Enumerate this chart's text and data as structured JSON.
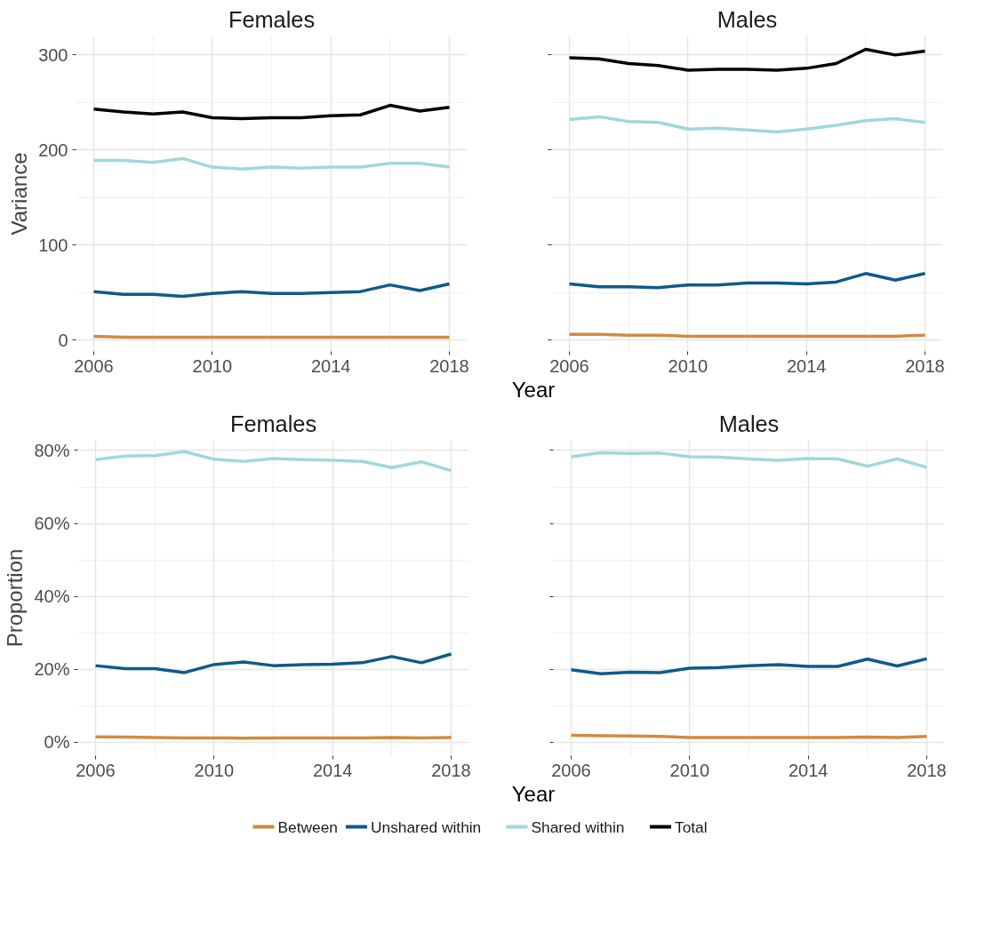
{
  "chart_data": [
    {
      "type": "line",
      "title": "Females",
      "xlabel": "Year",
      "ylabel": "Variance",
      "x": [
        2006,
        2007,
        2008,
        2009,
        2010,
        2011,
        2012,
        2013,
        2014,
        2015,
        2016,
        2017,
        2018
      ],
      "xlim": [
        2005.4,
        2018.6
      ],
      "xticks": [
        2006,
        2010,
        2014,
        2018
      ],
      "ylim": [
        -12,
        320
      ],
      "yticks": [
        0,
        100,
        200,
        300
      ],
      "grid": true,
      "legend": "bottom",
      "line_style": "solid",
      "series": [
        {
          "name": "Between",
          "color": "#d08c3f",
          "values": [
            4,
            3,
            3,
            3,
            3,
            3,
            3,
            3,
            3,
            3,
            3,
            3,
            3
          ]
        },
        {
          "name": "Unshared within",
          "color": "#0f5a8a",
          "values": [
            51,
            48,
            48,
            46,
            49,
            51,
            49,
            49,
            50,
            51,
            58,
            52,
            59
          ]
        },
        {
          "name": "Shared within",
          "color": "#a0d8d8",
          "values": [
            189,
            189,
            187,
            191,
            182,
            180,
            182,
            181,
            182,
            182,
            186,
            186,
            182
          ]
        },
        {
          "name": "Total",
          "color": "#000000",
          "values": [
            243,
            240,
            238,
            240,
            234,
            233,
            234,
            234,
            236,
            237,
            247,
            241,
            245
          ]
        }
      ]
    },
    {
      "type": "line",
      "title": "Males",
      "x": [
        2006,
        2007,
        2008,
        2009,
        2010,
        2011,
        2012,
        2013,
        2014,
        2015,
        2016,
        2017,
        2018
      ],
      "xlim": [
        2005.4,
        2018.6
      ],
      "xticks": [
        2006,
        2010,
        2014,
        2018
      ],
      "ylim": [
        -12,
        320
      ],
      "yticks": [
        0,
        100,
        200,
        300
      ],
      "grid": true,
      "tick_labels": "x",
      "line_style": "solid",
      "series": [
        {
          "color": "#d08c3f",
          "values": [
            6,
            6,
            5,
            5,
            4,
            4,
            4,
            4,
            4,
            4,
            4,
            4,
            5
          ]
        },
        {
          "color": "#0f5a8a",
          "values": [
            59,
            56,
            56,
            55,
            58,
            58,
            60,
            60,
            59,
            61,
            70,
            63,
            70
          ]
        },
        {
          "color": "#a0d8d8",
          "values": [
            232,
            235,
            230,
            229,
            222,
            223,
            221,
            219,
            222,
            226,
            231,
            233,
            229
          ]
        },
        {
          "color": "#000000",
          "values": [
            297,
            296,
            291,
            289,
            284,
            285,
            285,
            284,
            286,
            291,
            306,
            300,
            304
          ]
        }
      ]
    },
    {
      "type": "line",
      "title": "Females",
      "xlabel": "Year",
      "ylabel": "Proportion",
      "x": [
        2006,
        2007,
        2008,
        2009,
        2010,
        2011,
        2012,
        2013,
        2014,
        2015,
        2016,
        2017,
        2018
      ],
      "xlim": [
        2005.4,
        2018.6
      ],
      "xticks": [
        2006,
        2010,
        2014,
        2018
      ],
      "ylim": [
        -3.7,
        82.8
      ],
      "yticks": [
        {
          "value": 0,
          "label": "0%"
        },
        {
          "value": 20,
          "label": "20%"
        },
        {
          "value": 40,
          "label": "40%"
        },
        {
          "value": 60,
          "label": "60%"
        },
        {
          "value": 80,
          "label": "80%"
        }
      ],
      "grid": true,
      "line_style": "solid",
      "series": [
        {
          "color": "#d08c3f",
          "values": [
            1.5,
            1.4,
            1.3,
            1.2,
            1.2,
            1.1,
            1.2,
            1.2,
            1.2,
            1.2,
            1.3,
            1.2,
            1.3
          ]
        },
        {
          "color": "#0f5a8a",
          "values": [
            21,
            20.2,
            20.2,
            19.1,
            21.3,
            22,
            21,
            21.3,
            21.4,
            21.8,
            23.5,
            21.8,
            24.2
          ]
        },
        {
          "color": "#a0d8d8",
          "values": [
            77.5,
            78.5,
            78.6,
            79.7,
            77.6,
            77,
            77.8,
            77.5,
            77.3,
            77,
            75.3,
            76.9,
            74.5
          ]
        }
      ]
    },
    {
      "type": "line",
      "title": "Males",
      "x": [
        2006,
        2007,
        2008,
        2009,
        2010,
        2011,
        2012,
        2013,
        2014,
        2015,
        2016,
        2017,
        2018
      ],
      "xlim": [
        2005.4,
        2018.6
      ],
      "xticks": [
        2006,
        2010,
        2014,
        2018
      ],
      "ylim": [
        -3.7,
        82.8
      ],
      "yticks": [
        0,
        20,
        40,
        60,
        80
      ],
      "grid": true,
      "tick_labels": "x",
      "line_style": "solid",
      "series": [
        {
          "color": "#d08c3f",
          "values": [
            1.9,
            1.8,
            1.7,
            1.6,
            1.3,
            1.3,
            1.3,
            1.3,
            1.3,
            1.3,
            1.4,
            1.3,
            1.6
          ]
        },
        {
          "color": "#0f5a8a",
          "values": [
            19.9,
            18.8,
            19.2,
            19.1,
            20.3,
            20.5,
            21,
            21.3,
            20.8,
            20.8,
            22.8,
            20.9,
            22.9
          ]
        },
        {
          "color": "#a0d8d8",
          "values": [
            78.3,
            79.4,
            79.2,
            79.3,
            78.3,
            78.2,
            77.7,
            77.3,
            77.8,
            77.7,
            75.7,
            77.7,
            75.4
          ]
        }
      ]
    }
  ]
}
